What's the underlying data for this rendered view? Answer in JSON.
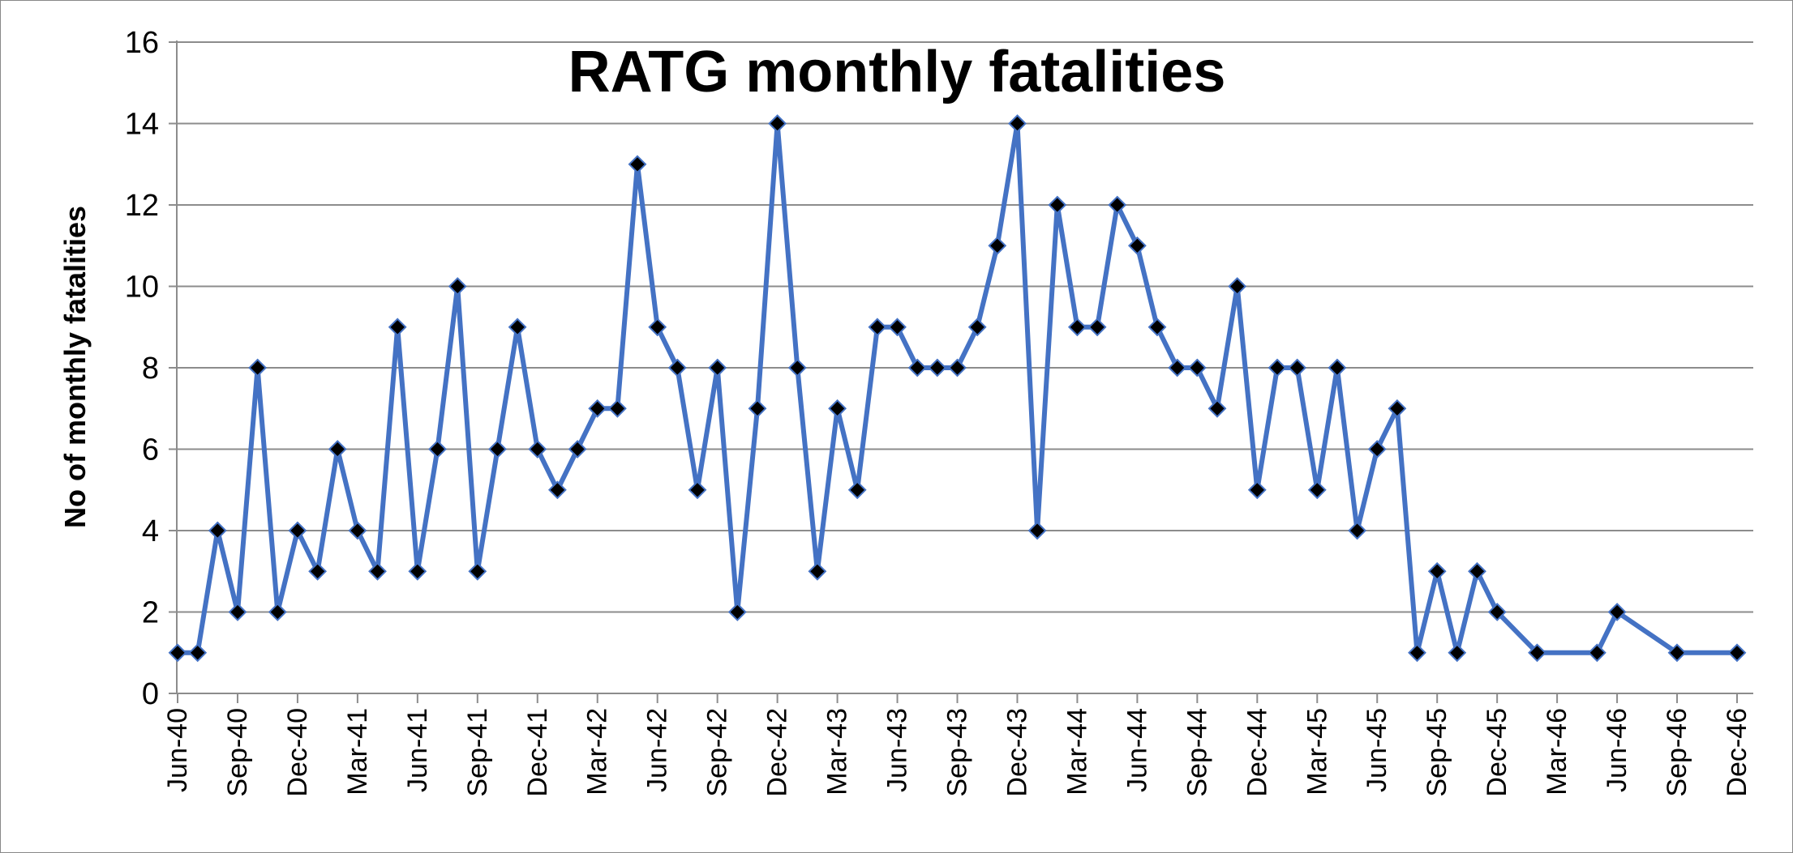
{
  "chart_data": {
    "type": "line",
    "title": "RATG monthly fatalities",
    "xlabel": "",
    "ylabel": "No of monthly fatalities",
    "ylim": [
      0,
      16
    ],
    "yticks": [
      0,
      2,
      4,
      6,
      8,
      10,
      12,
      14,
      16
    ],
    "grid": true,
    "legend": "none",
    "x_start": "Jun-40",
    "x_end": "Dec-46",
    "x_tick_labels": [
      "Jun-40",
      "Sep-40",
      "Dec-40",
      "Mar-41",
      "Jun-41",
      "Sep-41",
      "Dec-41",
      "Mar-42",
      "Jun-42",
      "Sep-42",
      "Dec-42",
      "Mar-43",
      "Jun-43",
      "Sep-43",
      "Dec-43",
      "Mar-44",
      "Jun-44",
      "Sep-44",
      "Dec-44",
      "Mar-45",
      "Jun-45",
      "Sep-45",
      "Dec-45",
      "Mar-46",
      "Jun-46",
      "Sep-46",
      "Dec-46"
    ],
    "series": [
      {
        "color": "#4472C4",
        "marker_color": "#000000",
        "marker": "diamond",
        "points": [
          {
            "x": "Jun-40",
            "y": 1
          },
          {
            "x": "Jul-40",
            "y": 1
          },
          {
            "x": "Aug-40",
            "y": 4
          },
          {
            "x": "Sep-40",
            "y": 2
          },
          {
            "x": "Oct-40",
            "y": 8
          },
          {
            "x": "Nov-40",
            "y": 2
          },
          {
            "x": "Dec-40",
            "y": 4
          },
          {
            "x": "Jan-41",
            "y": 3
          },
          {
            "x": "Feb-41",
            "y": 6
          },
          {
            "x": "Mar-41",
            "y": 4
          },
          {
            "x": "Apr-41",
            "y": 3
          },
          {
            "x": "May-41",
            "y": 9
          },
          {
            "x": "Jun-41",
            "y": 3
          },
          {
            "x": "Jul-41",
            "y": 6
          },
          {
            "x": "Aug-41",
            "y": 10
          },
          {
            "x": "Sep-41",
            "y": 3
          },
          {
            "x": "Oct-41",
            "y": 6
          },
          {
            "x": "Nov-41",
            "y": 9
          },
          {
            "x": "Dec-41",
            "y": 6
          },
          {
            "x": "Jan-42",
            "y": 5
          },
          {
            "x": "Feb-42",
            "y": 6
          },
          {
            "x": "Mar-42",
            "y": 7
          },
          {
            "x": "Apr-42",
            "y": 7
          },
          {
            "x": "May-42",
            "y": 13
          },
          {
            "x": "Jun-42",
            "y": 9
          },
          {
            "x": "Jul-42",
            "y": 8
          },
          {
            "x": "Aug-42",
            "y": 5
          },
          {
            "x": "Sep-42",
            "y": 8
          },
          {
            "x": "Oct-42",
            "y": 2
          },
          {
            "x": "Nov-42",
            "y": 7
          },
          {
            "x": "Dec-42",
            "y": 14
          },
          {
            "x": "Jan-43",
            "y": 8
          },
          {
            "x": "Feb-43",
            "y": 3
          },
          {
            "x": "Mar-43",
            "y": 7
          },
          {
            "x": "Apr-43",
            "y": 5
          },
          {
            "x": "May-43",
            "y": 9
          },
          {
            "x": "Jun-43",
            "y": 9
          },
          {
            "x": "Jul-43",
            "y": 8
          },
          {
            "x": "Aug-43",
            "y": 8
          },
          {
            "x": "Sep-43",
            "y": 8
          },
          {
            "x": "Oct-43",
            "y": 9
          },
          {
            "x": "Nov-43",
            "y": 11
          },
          {
            "x": "Dec-43",
            "y": 14
          },
          {
            "x": "Jan-44",
            "y": 4
          },
          {
            "x": "Feb-44",
            "y": 12
          },
          {
            "x": "Mar-44",
            "y": 9
          },
          {
            "x": "Apr-44",
            "y": 9
          },
          {
            "x": "May-44",
            "y": 12
          },
          {
            "x": "Jun-44",
            "y": 11
          },
          {
            "x": "Jul-44",
            "y": 9
          },
          {
            "x": "Aug-44",
            "y": 8
          },
          {
            "x": "Sep-44",
            "y": 8
          },
          {
            "x": "Oct-44",
            "y": 7
          },
          {
            "x": "Nov-44",
            "y": 10
          },
          {
            "x": "Dec-44",
            "y": 5
          },
          {
            "x": "Jan-45",
            "y": 8
          },
          {
            "x": "Feb-45",
            "y": 8
          },
          {
            "x": "Mar-45",
            "y": 5
          },
          {
            "x": "Apr-45",
            "y": 8
          },
          {
            "x": "May-45",
            "y": 4
          },
          {
            "x": "Jun-45",
            "y": 6
          },
          {
            "x": "Jul-45",
            "y": 7
          },
          {
            "x": "Aug-45",
            "y": 1
          },
          {
            "x": "Sep-45",
            "y": 3
          },
          {
            "x": "Oct-45",
            "y": 1
          },
          {
            "x": "Nov-45",
            "y": 3
          },
          {
            "x": "Dec-45",
            "y": 2
          },
          {
            "x": "Feb-46",
            "y": 1
          },
          {
            "x": "May-46",
            "y": 1
          },
          {
            "x": "Jun-46",
            "y": 2
          },
          {
            "x": "Sep-46",
            "y": 1
          },
          {
            "x": "Dec-46",
            "y": 1
          }
        ]
      }
    ]
  }
}
